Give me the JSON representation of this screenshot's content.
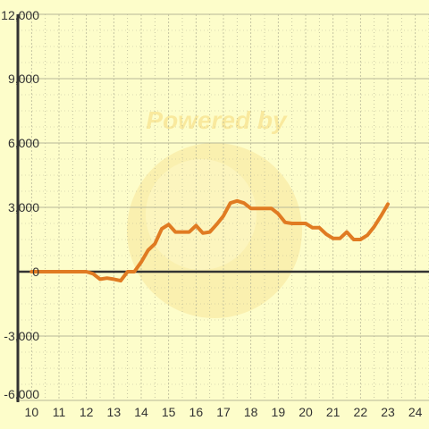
{
  "chart_data": {
    "type": "line",
    "watermark_text": "Powered by",
    "x": [
      10,
      11,
      12,
      12.25,
      12.5,
      12.75,
      13,
      13.25,
      13.5,
      13.75,
      14,
      14.25,
      14.5,
      14.75,
      15,
      15.25,
      15.5,
      15.75,
      16,
      16.25,
      16.5,
      16.75,
      17,
      17.25,
      17.5,
      17.75,
      18,
      18.25,
      18.5,
      18.75,
      19,
      19.25,
      19.5,
      19.75,
      20,
      20.25,
      20.5,
      20.75,
      21,
      21.25,
      21.5,
      21.75,
      22,
      22.25,
      22.5,
      22.75,
      23
    ],
    "series": [
      {
        "values": [
          0,
          0,
          0,
          -100,
          -350,
          -300,
          -350,
          -420,
          0,
          0,
          450,
          1000,
          1300,
          2000,
          2200,
          1850,
          1850,
          1850,
          2150,
          1800,
          1850,
          2200,
          2600,
          3200,
          3300,
          3200,
          2950,
          2950,
          2950,
          2950,
          2700,
          2300,
          2250,
          2250,
          2250,
          2050,
          2050,
          1750,
          1550,
          1550,
          1850,
          1500,
          1500,
          1700,
          2100,
          2600,
          3150
        ],
        "color": "#e07b22"
      }
    ],
    "xlim": [
      9.5,
      24.5
    ],
    "ylim": [
      -6000,
      12000
    ],
    "x_ticks": [
      10,
      11,
      12,
      13,
      14,
      15,
      16,
      17,
      18,
      19,
      20,
      21,
      22,
      23,
      24
    ],
    "x_tick_labels": [
      "10",
      "11",
      "12",
      "13",
      "14",
      "15",
      "16",
      "17",
      "18",
      "19",
      "20",
      "21",
      "22",
      "23",
      "24"
    ],
    "y_ticks": [
      -6000,
      -3000,
      0,
      3000,
      6000,
      9000,
      12000
    ],
    "y_tick_labels": [
      "-6,000",
      "-3,000",
      "0",
      "3,000",
      "6,000",
      "9,000",
      "12,000"
    ],
    "grid": true,
    "colors": {
      "background": "#fdfdca",
      "grid": "#b8b898",
      "axis": "#333333",
      "line": "#e07b22",
      "watermark": "#f7d979"
    }
  }
}
